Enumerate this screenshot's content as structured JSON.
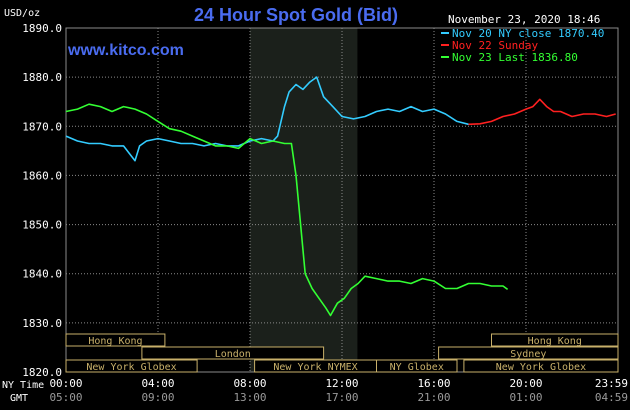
{
  "header": {
    "unit": "USD/oz",
    "title": "24 Hour Spot Gold (Bid)",
    "timestamp": "November 23, 2020 18:46",
    "website": "www.kitco.com"
  },
  "legend": [
    {
      "label": "Nov 20 NY close 1870.40",
      "color": "#33ccff"
    },
    {
      "label": "Nov 22 Sunday",
      "color": "#ff2020"
    },
    {
      "label": "Nov 23 Last 1836.80",
      "color": "#33ff33"
    }
  ],
  "colors": {
    "background": "#000000",
    "title": "#4a6cf0",
    "grid": "#8a8a8a",
    "text": "#ffffff",
    "session_shade": "#1b201b",
    "session_box": "#c8b06a",
    "session_text": "#000000"
  },
  "chart_data": {
    "type": "line",
    "title": "24 Hour Spot Gold (Bid)",
    "ylabel": "USD/oz",
    "ylim": [
      1820,
      1890
    ],
    "y_ticks": [
      "1890.0",
      "1880.0",
      "1870.0",
      "1860.0",
      "1850.0",
      "1840.0",
      "1830.0",
      "1820.0"
    ],
    "xlim_hours": [
      0,
      24
    ],
    "x_ticks_ny": [
      "00:00",
      "04:00",
      "08:00",
      "12:00",
      "16:00",
      "20:00",
      "23:59"
    ],
    "x_ticks_gmt": [
      "05:00",
      "09:00",
      "13:00",
      "17:00",
      "21:00",
      "01:00",
      "04:59"
    ],
    "x_axis_labels": [
      "NY Time",
      "GMT"
    ],
    "grid": true,
    "legend_position": "top-right",
    "shaded_span_hours": [
      8,
      12.67
    ],
    "series": [
      {
        "name": "Nov 20 NY close 1870.40",
        "color": "#33ccff",
        "points": [
          [
            0,
            1868
          ],
          [
            0.5,
            1867
          ],
          [
            1,
            1866.5
          ],
          [
            1.5,
            1866.5
          ],
          [
            2,
            1866
          ],
          [
            2.5,
            1866
          ],
          [
            3,
            1863
          ],
          [
            3.2,
            1866
          ],
          [
            3.5,
            1867
          ],
          [
            4,
            1867.5
          ],
          [
            4.5,
            1867
          ],
          [
            5,
            1866.5
          ],
          [
            5.5,
            1866.5
          ],
          [
            6,
            1866
          ],
          [
            6.5,
            1866.5
          ],
          [
            7,
            1866
          ],
          [
            7.5,
            1866
          ],
          [
            8,
            1867
          ],
          [
            8.5,
            1867.5
          ],
          [
            9,
            1867
          ],
          [
            9.2,
            1868
          ],
          [
            9.5,
            1874
          ],
          [
            9.7,
            1877
          ],
          [
            10,
            1878.5
          ],
          [
            10.3,
            1877.5
          ],
          [
            10.6,
            1879
          ],
          [
            10.9,
            1880
          ],
          [
            11.2,
            1876
          ],
          [
            11.6,
            1874
          ],
          [
            12,
            1872
          ],
          [
            12.5,
            1871.5
          ],
          [
            13,
            1872
          ],
          [
            13.5,
            1873
          ],
          [
            14,
            1873.5
          ],
          [
            14.5,
            1873
          ],
          [
            15,
            1874
          ],
          [
            15.5,
            1873
          ],
          [
            16,
            1873.5
          ],
          [
            16.5,
            1872.5
          ],
          [
            17,
            1871
          ],
          [
            17.5,
            1870.4
          ]
        ]
      },
      {
        "name": "Nov 22 Sunday",
        "color": "#ff2020",
        "points": [
          [
            17.5,
            1870.4
          ],
          [
            18,
            1870.5
          ],
          [
            18.5,
            1871
          ],
          [
            19,
            1872
          ],
          [
            19.5,
            1872.5
          ],
          [
            20,
            1873.5
          ],
          [
            20.3,
            1874
          ],
          [
            20.6,
            1875.5
          ],
          [
            20.9,
            1874
          ],
          [
            21.2,
            1873
          ],
          [
            21.5,
            1873
          ],
          [
            22,
            1872
          ],
          [
            22.5,
            1872.5
          ],
          [
            23,
            1872.5
          ],
          [
            23.5,
            1872
          ],
          [
            23.9,
            1872.5
          ]
        ]
      },
      {
        "name": "Nov 23 Last 1836.80",
        "color": "#33ff33",
        "points": [
          [
            0,
            1873
          ],
          [
            0.5,
            1873.5
          ],
          [
            1,
            1874.5
          ],
          [
            1.5,
            1874
          ],
          [
            2,
            1873
          ],
          [
            2.5,
            1874
          ],
          [
            3,
            1873.5
          ],
          [
            3.5,
            1872.5
          ],
          [
            4,
            1871
          ],
          [
            4.5,
            1869.5
          ],
          [
            5,
            1869
          ],
          [
            5.5,
            1868
          ],
          [
            6,
            1867
          ],
          [
            6.5,
            1866
          ],
          [
            7,
            1866
          ],
          [
            7.5,
            1865.5
          ],
          [
            8,
            1867.5
          ],
          [
            8.5,
            1866.5
          ],
          [
            9,
            1867
          ],
          [
            9.5,
            1866.5
          ],
          [
            9.8,
            1866.5
          ],
          [
            10,
            1860
          ],
          [
            10.2,
            1850
          ],
          [
            10.4,
            1840
          ],
          [
            10.7,
            1837
          ],
          [
            11,
            1835
          ],
          [
            11.3,
            1833
          ],
          [
            11.5,
            1831.5
          ],
          [
            11.8,
            1834
          ],
          [
            12.1,
            1835
          ],
          [
            12.4,
            1837
          ],
          [
            12.7,
            1838
          ],
          [
            13,
            1839.5
          ],
          [
            13.5,
            1839
          ],
          [
            14,
            1838.5
          ],
          [
            14.5,
            1838.5
          ],
          [
            15,
            1838
          ],
          [
            15.5,
            1839
          ],
          [
            16,
            1838.5
          ],
          [
            16.5,
            1837
          ],
          [
            17,
            1837
          ],
          [
            17.5,
            1838
          ],
          [
            18,
            1838
          ],
          [
            18.5,
            1837.5
          ],
          [
            19,
            1837.5
          ],
          [
            19.2,
            1836.8
          ]
        ]
      }
    ]
  },
  "sessions": [
    {
      "label": "Hong Kong",
      "start": 0,
      "end": 4.3,
      "row": 0
    },
    {
      "label": "London",
      "start": 3.3,
      "end": 11.2,
      "row": 1
    },
    {
      "label": "New York Globex",
      "start": 0,
      "end": 5.7,
      "row": 2
    },
    {
      "label": "New York NYMEX",
      "start": 8.2,
      "end": 13.5,
      "row": 2
    },
    {
      "label": "NY Globex",
      "start": 13.5,
      "end": 17.0,
      "row": 2
    },
    {
      "label": "Hong Kong",
      "start": 18.5,
      "end": 24,
      "row": 0
    },
    {
      "label": "Sydney",
      "start": 16.2,
      "end": 24,
      "row": 1
    },
    {
      "label": "New York Globex",
      "start": 17.3,
      "end": 24,
      "row": 2
    }
  ]
}
